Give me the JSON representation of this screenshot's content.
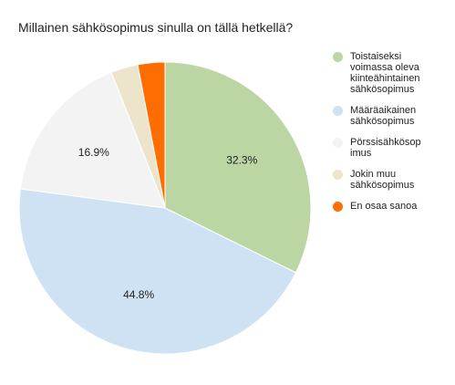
{
  "chart_data": {
    "type": "pie",
    "title": "Millainen sähkösopimus sinulla on tällä hetkellä?",
    "start_angle_deg": 0,
    "direction": "clockwise",
    "legend_position": "right",
    "slices": [
      {
        "label": "Toistaiseksi\nvoimassa oleva\nkiinteähintainen\nsähkösopimus",
        "value": 32.3,
        "display": "32.3%",
        "color": "#bcd6a3"
      },
      {
        "label": "Määräaikainen\nsähkösopimus",
        "value": 44.8,
        "display": "44.8%",
        "color": "#cfe2f3"
      },
      {
        "label": "Pörssisähkösop\nimus",
        "value": 16.9,
        "display": "16.9%",
        "color": "#f3f3f3"
      },
      {
        "label": "Jokin muu\nsähkösopimus",
        "value": 3.0,
        "display": "",
        "color": "#ede4cc"
      },
      {
        "label": "En osaa sanoa",
        "value": 3.0,
        "display": "",
        "color": "#ff6d00"
      }
    ]
  }
}
